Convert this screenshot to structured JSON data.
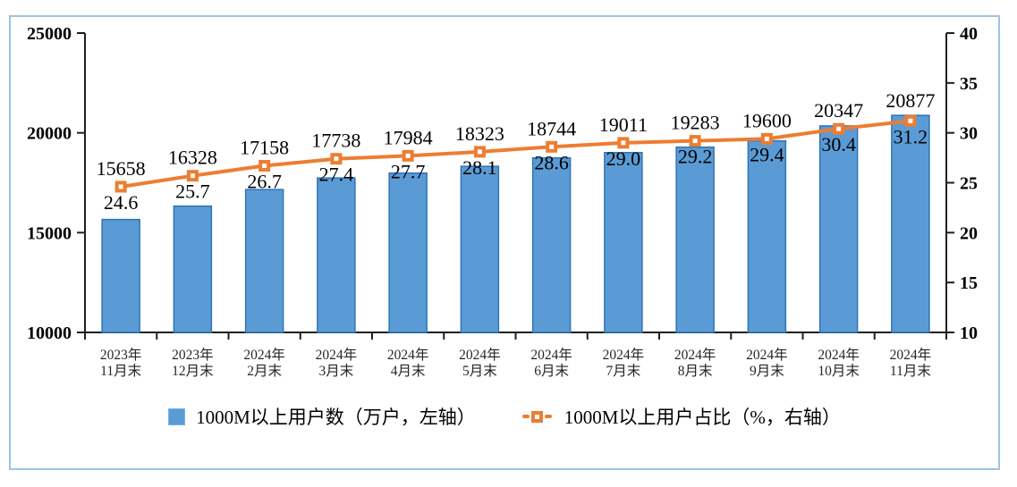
{
  "chart_data": {
    "type": "bar",
    "combo": "bar+line dual axis",
    "title": "",
    "categories": [
      [
        "2023年",
        "11月末"
      ],
      [
        "2023年",
        "12月末"
      ],
      [
        "2024年",
        "2月末"
      ],
      [
        "2024年",
        "3月末"
      ],
      [
        "2024年",
        "4月末"
      ],
      [
        "2024年",
        "5月末"
      ],
      [
        "2024年",
        "6月末"
      ],
      [
        "2024年",
        "7月末"
      ],
      [
        "2024年",
        "8月末"
      ],
      [
        "2024年",
        "9月末"
      ],
      [
        "2024年",
        "10月末"
      ],
      [
        "2024年",
        "11月末"
      ]
    ],
    "series": [
      {
        "name": "1000M以上用户数（万户，左轴）",
        "type": "bar",
        "axis": "left",
        "values": [
          15658,
          16328,
          17158,
          17738,
          17984,
          18323,
          18744,
          19011,
          19283,
          19600,
          20347,
          20877
        ]
      },
      {
        "name": "1000M以上用户占比（%，右轴）",
        "type": "line",
        "axis": "right",
        "values": [
          24.6,
          25.7,
          26.7,
          27.4,
          27.7,
          28.1,
          28.6,
          29.0,
          29.2,
          29.4,
          30.4,
          31.2
        ]
      }
    ],
    "left_axis": {
      "min": 10000,
      "max": 25000,
      "step": 5000,
      "ticks": [
        10000,
        15000,
        20000,
        25000
      ]
    },
    "right_axis": {
      "min": 10,
      "max": 40,
      "step": 5,
      "ticks": [
        10,
        15,
        20,
        25,
        30,
        35,
        40
      ]
    },
    "legend": [
      {
        "label": "1000M以上用户数（万户，左轴）",
        "marker": "blue-square"
      },
      {
        "label": "1000M以上用户占比（%，右轴）",
        "marker": "orange-dash-square"
      }
    ],
    "colors": {
      "bar_fill": "#5B9BD5",
      "bar_border": "#2E75B6",
      "line": "#ED7D31",
      "marker_center": "#FFFFFF",
      "frame_border": "#9DC3E6",
      "axis": "#1F1F1F",
      "text": "#000000"
    }
  }
}
